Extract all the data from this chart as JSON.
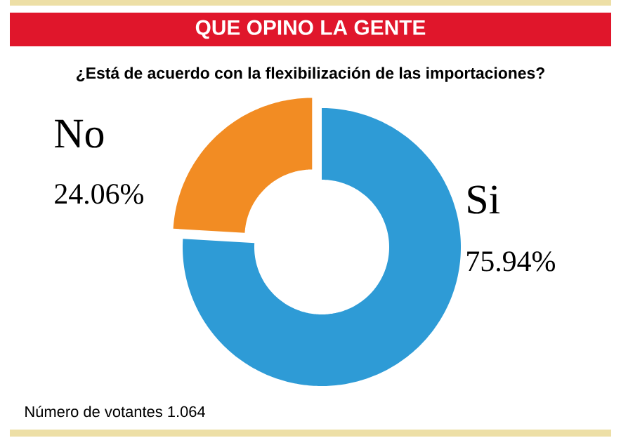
{
  "chart_data": {
    "type": "donut",
    "title": "QUE OPINO LA GENTE",
    "subtitle": "¿Está de acuerdo con la flexibilización de las importaciones?",
    "categories": [
      "Si",
      "No"
    ],
    "values": [
      75.94,
      24.06
    ],
    "colors": [
      "#2e9bd6",
      "#f28c23"
    ],
    "value_labels": [
      "75.94%",
      "24.06%"
    ],
    "annotations": [
      "Número de votantes 1.064"
    ]
  }
}
